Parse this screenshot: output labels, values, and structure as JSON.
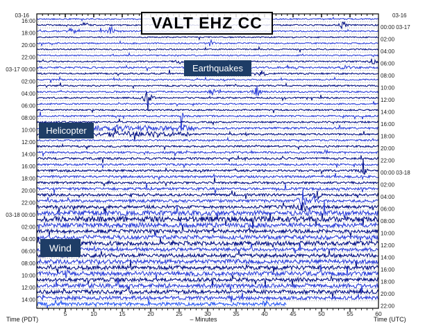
{
  "title": "VALT EHZ CC",
  "annotations": {
    "earthquakes": "Earthquakes",
    "helicopter": "Helicopter",
    "wind": "Wind"
  },
  "axes": {
    "left_label": "Time (PDT)",
    "right_label": "Time (UTC)",
    "minutes_label": "– Minutes",
    "left_top_date": "03-16",
    "right_top_date": "03-16",
    "bottom_minutes": [
      5,
      10,
      15,
      20,
      25,
      30,
      35,
      40,
      45,
      50,
      55,
      60
    ]
  },
  "left_time_labels": [
    {
      "row": 0,
      "text": "16:00"
    },
    {
      "row": 2,
      "text": "18:00"
    },
    {
      "row": 4,
      "text": "20:00"
    },
    {
      "row": 6,
      "text": "22:00"
    },
    {
      "row": 8,
      "text": "03-17 00:00"
    },
    {
      "row": 10,
      "text": "02:00"
    },
    {
      "row": 12,
      "text": "04:00"
    },
    {
      "row": 14,
      "text": "06:00"
    },
    {
      "row": 16,
      "text": "08:00"
    },
    {
      "row": 18,
      "text": "10:00"
    },
    {
      "row": 20,
      "text": "12:00"
    },
    {
      "row": 22,
      "text": "14:00"
    },
    {
      "row": 24,
      "text": "16:00"
    },
    {
      "row": 26,
      "text": "18:00"
    },
    {
      "row": 28,
      "text": "20:00"
    },
    {
      "row": 30,
      "text": "22:00"
    },
    {
      "row": 32,
      "text": "03-18 00:00"
    },
    {
      "row": 34,
      "text": "02:00"
    },
    {
      "row": 36,
      "text": "04:00"
    },
    {
      "row": 38,
      "text": "06:00"
    },
    {
      "row": 40,
      "text": "08:00"
    },
    {
      "row": 42,
      "text": "10:00"
    },
    {
      "row": 44,
      "text": "12:00"
    },
    {
      "row": 46,
      "text": "14:00"
    }
  ],
  "right_time_labels": [
    {
      "row": 1,
      "text": "00:00 03-17"
    },
    {
      "row": 3,
      "text": "02:00"
    },
    {
      "row": 5,
      "text": "04:00"
    },
    {
      "row": 7,
      "text": "06:00"
    },
    {
      "row": 9,
      "text": "08:00"
    },
    {
      "row": 11,
      "text": "10:00"
    },
    {
      "row": 13,
      "text": "12:00"
    },
    {
      "row": 15,
      "text": "14:00"
    },
    {
      "row": 17,
      "text": "16:00"
    },
    {
      "row": 19,
      "text": "18:00"
    },
    {
      "row": 21,
      "text": "20:00"
    },
    {
      "row": 23,
      "text": "22:00"
    },
    {
      "row": 25,
      "text": "00:00 03-18"
    },
    {
      "row": 27,
      "text": "02:00"
    },
    {
      "row": 29,
      "text": "04:00"
    },
    {
      "row": 31,
      "text": "06:00"
    },
    {
      "row": 33,
      "text": "08:00"
    },
    {
      "row": 35,
      "text": "10:00"
    },
    {
      "row": 37,
      "text": "12:00"
    },
    {
      "row": 39,
      "text": "14:00"
    },
    {
      "row": 41,
      "text": "16:00"
    },
    {
      "row": 43,
      "text": "18:00"
    },
    {
      "row": 45,
      "text": "20:00"
    },
    {
      "row": 47,
      "text": "22:00"
    }
  ],
  "colors": {
    "trace_blue": "#2a3dd8",
    "trace_navy": "#000d82",
    "trace_current": "#2a58f2",
    "grid_dots": "#8f9399",
    "label_box_bg": "#1e3d66",
    "label_box_text": "#ffffff",
    "axis": "#000000",
    "tick_text": "#1a1a1a"
  },
  "chart_data": {
    "type": "helicorder",
    "title": "VALT EHZ CC",
    "station": "VALT",
    "channel": "EHZ",
    "network": "CC",
    "xlabel": "– Minutes",
    "x_range_minutes": [
      0,
      60
    ],
    "minutes_per_line": 60,
    "lines": 48,
    "left_time_zone": "PDT",
    "right_time_zone": "UTC",
    "first_line_pdt": "03-16 16:00",
    "last_line_pdt": "03-18 15:00",
    "last_line_partial_end_minute": 43.8,
    "row_noise_amplitude": [
      0.9,
      1.0,
      1.0,
      0.9,
      1.0,
      0.9,
      0.9,
      1.0,
      1.3,
      1.1,
      1.0,
      1.1,
      1.2,
      1.1,
      1.0,
      1.1,
      1.2,
      1.2,
      1.4,
      1.3,
      1.2,
      1.3,
      1.4,
      1.5,
      1.4,
      1.5,
      1.6,
      1.6,
      1.8,
      1.9,
      2.0,
      2.2,
      3.4,
      3.8,
      3.2,
      2.6,
      2.8,
      3.0,
      2.4,
      2.6,
      3.0,
      2.8,
      3.2,
      2.6,
      3.0,
      2.8,
      2.6,
      2.4
    ],
    "events": [
      {
        "row": 1,
        "minute": 8.4,
        "amp": 5
      },
      {
        "row": 1,
        "minute": 53.8,
        "amp": 8
      },
      {
        "row": 2,
        "minute": 6.1,
        "amp": 7
      },
      {
        "row": 2,
        "minute": 13.0,
        "amp": 9
      },
      {
        "row": 4,
        "minute": 30.5,
        "amp": 5
      },
      {
        "row": 7,
        "minute": 25.0,
        "amp": 4
      },
      {
        "row": 7,
        "minute": 59.0,
        "amp": 6
      },
      {
        "row": 8,
        "minute": 54.2,
        "amp": 6
      },
      {
        "row": 9,
        "minute": 39.5,
        "amp": 6
      },
      {
        "row": 12,
        "minute": 31.0,
        "amp": 8
      },
      {
        "row": 12,
        "minute": 38.7,
        "amp": 9
      },
      {
        "row": 13,
        "minute": 19.5,
        "amp": 22
      },
      {
        "row": 16,
        "minute": 25.5,
        "amp": 5
      },
      {
        "row": 25,
        "minute": 57.4,
        "amp": 6
      },
      {
        "row": 29,
        "minute": 49.3,
        "amp": 7
      },
      {
        "row": 30,
        "minute": 46.6,
        "amp": 20
      },
      {
        "row": 30,
        "minute": 48.7,
        "amp": 10
      },
      {
        "row": 31,
        "minute": 46.8,
        "amp": 14
      },
      {
        "row": 42,
        "minute": 5.1,
        "amp": 6
      },
      {
        "row": 45,
        "minute": 16.1,
        "amp": 8
      },
      {
        "row": 46,
        "minute": 34.1,
        "amp": 7
      },
      {
        "row": 47,
        "minute": 40.0,
        "amp": 8
      }
    ],
    "bursts": [
      {
        "row": 18,
        "start": 9.5,
        "end": 28,
        "amp": 2.6
      },
      {
        "row": 19,
        "start": 10,
        "end": 27,
        "amp": 2.2
      }
    ]
  }
}
